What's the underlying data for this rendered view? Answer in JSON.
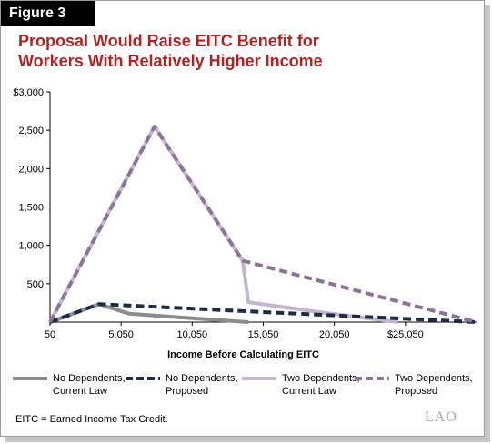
{
  "figure_label": "Figure 3",
  "title_lines": [
    "Proposal Would Raise EITC Benefit for",
    "Workers With Relatively Higher Income"
  ],
  "footnote": "EITC = Earned Income Tax Credit.",
  "logo": "LAO",
  "chart_data": {
    "type": "line",
    "title": "Proposal Would Raise EITC Benefit for Workers With Relatively Higher Income",
    "xlabel": "Income Before Calculating EITC",
    "ylabel": "",
    "xlim": [
      50,
      30050
    ],
    "ylim": [
      0,
      3000
    ],
    "x_ticks": [
      50,
      5050,
      10050,
      15050,
      20050,
      25050
    ],
    "x_tick_labels": [
      "50",
      "5,050",
      "10,050",
      "15,050",
      "20,050",
      "$25,050"
    ],
    "y_ticks": [
      500,
      1000,
      1500,
      2000,
      2500,
      3000
    ],
    "y_tick_labels": [
      "500",
      "1,000",
      "1,500",
      "2,000",
      "2,500",
      "$3,000"
    ],
    "grid": false,
    "legend_position": "bottom",
    "series": [
      {
        "name": "No Dependents, Current Law",
        "label_lines": [
          "No Dependents,",
          "Current Law"
        ],
        "color": "#8c8c8c",
        "dash": "solid",
        "points": [
          [
            50,
            0
          ],
          [
            3500,
            235
          ],
          [
            5600,
            110
          ],
          [
            10050,
            50
          ],
          [
            14000,
            0
          ]
        ]
      },
      {
        "name": "No Dependents, Proposed",
        "label_lines": [
          "No Dependents,",
          "Proposed"
        ],
        "color": "#1b2c45",
        "dash": "dashed",
        "points": [
          [
            50,
            0
          ],
          [
            3500,
            235
          ],
          [
            14000,
            140
          ],
          [
            30050,
            0
          ]
        ]
      },
      {
        "name": "Two Dependents, Current Law",
        "label_lines": [
          "Two Dependents,",
          "Current Law"
        ],
        "color": "#c4b6cc",
        "dash": "solid",
        "points": [
          [
            50,
            0
          ],
          [
            7400,
            2550
          ],
          [
            13600,
            800
          ],
          [
            14000,
            260
          ],
          [
            19000,
            130
          ],
          [
            24500,
            0
          ]
        ]
      },
      {
        "name": "Two Dependents, Proposed",
        "label_lines": [
          "Two Dependents,",
          "Proposed"
        ],
        "color": "#8c7496",
        "dash": "dashed",
        "points": [
          [
            50,
            0
          ],
          [
            7400,
            2550
          ],
          [
            13600,
            800
          ],
          [
            30050,
            0
          ]
        ]
      }
    ]
  }
}
